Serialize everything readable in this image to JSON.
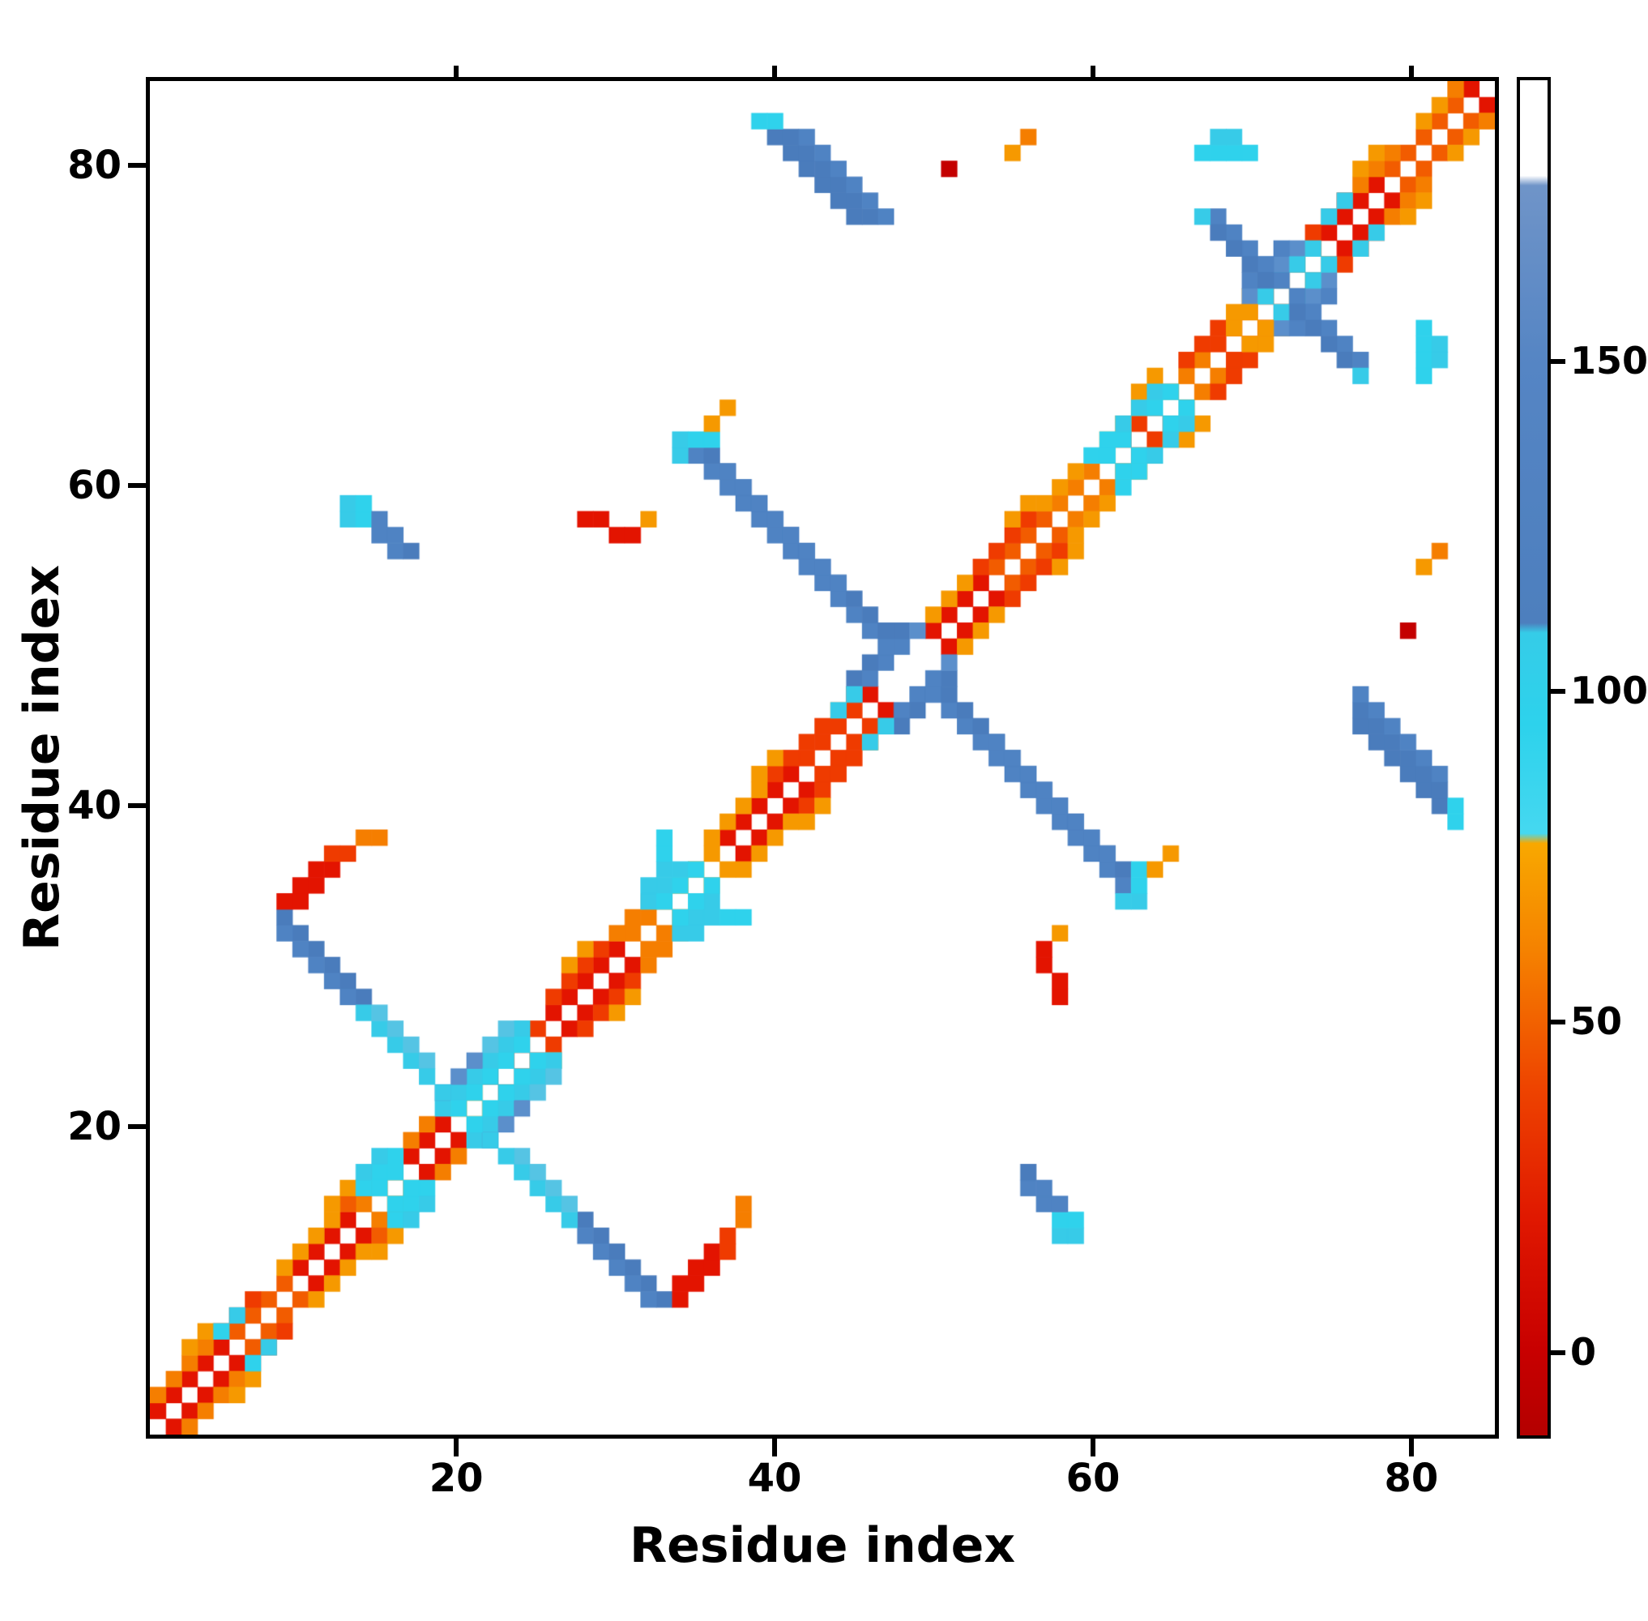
{
  "figure": {
    "xlabel": "Residue index",
    "ylabel": "Residue index",
    "x_ticks": [
      20,
      40,
      60,
      80
    ],
    "y_ticks": [
      20,
      40,
      60,
      80
    ],
    "n_residues": 85
  },
  "colorbar": {
    "ticks": [
      0,
      50,
      100,
      150
    ],
    "domain": [
      -13,
      193
    ],
    "stops": [
      [
        -13,
        "#b40000"
      ],
      [
        0,
        "#c80000"
      ],
      [
        20,
        "#e01800"
      ],
      [
        40,
        "#ee4400"
      ],
      [
        60,
        "#f58000"
      ],
      [
        77,
        "#f8a800"
      ],
      [
        78.5,
        "#45d8f0"
      ],
      [
        95,
        "#2dd2ec"
      ],
      [
        109,
        "#35cce8"
      ],
      [
        110.5,
        "#4d7fbe"
      ],
      [
        150,
        "#5585c4"
      ],
      [
        177,
        "#6f94c8"
      ],
      [
        178.5,
        "#ffffff"
      ],
      [
        193,
        "#ffffff"
      ]
    ]
  },
  "chart_data": {
    "type": "heatmap",
    "title": "",
    "xlabel": "Residue index",
    "ylabel": "Residue index",
    "x_range": [
      1,
      85
    ],
    "y_range": [
      1,
      85
    ],
    "symmetric": true,
    "grid": false,
    "colorbar_ticks": [
      0,
      50,
      100,
      150
    ],
    "colormap_thresholds": [
      {
        "max": 12,
        "color": "#c40000"
      },
      {
        "max": 22,
        "color": "#e31400"
      },
      {
        "max": 32,
        "color": "#ef3b00"
      },
      {
        "max": 45,
        "color": "#f25c00"
      },
      {
        "max": 58,
        "color": "#f57e00"
      },
      {
        "max": 70,
        "color": "#f69900"
      },
      {
        "max": 79,
        "color": "#f8b000"
      },
      {
        "max": 93,
        "color": "#2fd2ec"
      },
      {
        "max": 102,
        "color": "#37cbe8"
      },
      {
        "max": 110,
        "color": "#55c4e4"
      },
      {
        "max": 130,
        "color": "#5b8fcb"
      },
      {
        "max": 145,
        "color": "#4f83c3"
      },
      {
        "max": 160,
        "color": "#4a7cbc"
      },
      {
        "max": 178,
        "color": "#6b93c9"
      },
      {
        "max": 999,
        "color": "#ffffff"
      }
    ],
    "segment_format": [
      "i_start",
      "j_start",
      "di",
      "dj",
      "count",
      "value"
    ],
    "segments": [
      [
        1,
        2,
        1,
        1,
        5,
        20
      ],
      [
        6,
        7,
        1,
        1,
        4,
        45
      ],
      [
        10,
        11,
        1,
        1,
        4,
        18
      ],
      [
        14,
        15,
        1,
        1,
        3,
        50
      ],
      [
        17,
        18,
        1,
        1,
        3,
        22
      ],
      [
        20,
        21,
        1,
        1,
        2,
        60
      ],
      [
        22,
        23,
        1,
        1,
        4,
        25
      ],
      [
        26,
        27,
        1,
        1,
        5,
        18
      ],
      [
        31,
        32,
        1,
        1,
        3,
        48
      ],
      [
        34,
        35,
        1,
        1,
        3,
        60
      ],
      [
        37,
        38,
        1,
        1,
        5,
        15
      ],
      [
        42,
        43,
        1,
        1,
        4,
        28
      ],
      [
        46,
        47,
        1,
        1,
        1,
        20
      ],
      [
        50,
        51,
        1,
        1,
        4,
        18
      ],
      [
        54,
        55,
        1,
        1,
        4,
        40
      ],
      [
        58,
        59,
        1,
        1,
        4,
        55
      ],
      [
        62,
        63,
        1,
        1,
        3,
        30
      ],
      [
        65,
        66,
        1,
        1,
        3,
        50
      ],
      [
        68,
        69,
        1,
        1,
        4,
        25
      ],
      [
        72,
        73,
        1,
        1,
        3,
        45
      ],
      [
        75,
        76,
        1,
        1,
        4,
        18
      ],
      [
        79,
        80,
        1,
        1,
        5,
        35
      ],
      [
        84,
        85,
        1,
        1,
        1,
        15
      ],
      [
        1,
        3,
        1,
        1,
        4,
        55
      ],
      [
        5,
        7,
        1,
        1,
        3,
        30
      ],
      [
        9,
        11,
        1,
        1,
        4,
        62
      ],
      [
        13,
        15,
        1,
        1,
        3,
        35
      ],
      [
        17,
        19,
        1,
        1,
        2,
        58
      ],
      [
        22,
        24,
        1,
        1,
        3,
        65
      ],
      [
        26,
        28,
        1,
        1,
        4,
        30
      ],
      [
        30,
        32,
        1,
        1,
        3,
        58
      ],
      [
        36,
        38,
        1,
        1,
        4,
        62
      ],
      [
        40,
        42,
        1,
        1,
        4,
        30
      ],
      [
        44,
        46,
        1,
        1,
        2,
        58
      ],
      [
        50,
        52,
        1,
        1,
        3,
        62
      ],
      [
        53,
        55,
        1,
        1,
        4,
        32
      ],
      [
        57,
        59,
        1,
        1,
        3,
        60
      ],
      [
        61,
        63,
        1,
        1,
        3,
        65
      ],
      [
        66,
        68,
        1,
        1,
        3,
        30
      ],
      [
        69,
        71,
        1,
        1,
        3,
        60
      ],
      [
        74,
        76,
        1,
        1,
        3,
        32
      ],
      [
        77,
        79,
        1,
        1,
        3,
        58
      ],
      [
        81,
        83,
        1,
        1,
        3,
        62
      ],
      [
        3,
        6,
        1,
        1,
        2,
        68
      ],
      [
        12,
        15,
        1,
        1,
        2,
        70
      ],
      [
        27,
        30,
        1,
        1,
        2,
        66
      ],
      [
        39,
        42,
        1,
        1,
        2,
        70
      ],
      [
        55,
        58,
        1,
        1,
        2,
        68
      ],
      [
        63,
        66,
        1,
        1,
        2,
        70
      ],
      [
        77,
        80,
        1,
        1,
        2,
        66
      ],
      [
        5,
        7,
        1,
        1,
        1,
        90
      ],
      [
        6,
        8,
        1,
        1,
        1,
        96
      ],
      [
        14,
        16,
        1,
        1,
        3,
        92
      ],
      [
        14,
        17,
        1,
        1,
        2,
        98
      ],
      [
        15,
        16,
        1,
        1,
        2,
        88
      ],
      [
        19,
        21,
        1,
        1,
        6,
        94
      ],
      [
        20,
        22,
        1,
        1,
        5,
        100
      ],
      [
        19,
        22,
        1,
        1,
        3,
        118
      ],
      [
        20,
        21,
        1,
        1,
        5,
        88
      ],
      [
        22,
        25,
        1,
        1,
        2,
        105
      ],
      [
        32,
        34,
        1,
        1,
        3,
        95
      ],
      [
        33,
        34,
        1,
        1,
        3,
        88
      ],
      [
        32,
        35,
        1,
        1,
        2,
        102
      ],
      [
        33,
        37,
        0,
        1,
        2,
        92
      ],
      [
        45,
        47,
        1,
        1,
        4,
        135
      ],
      [
        45,
        48,
        1,
        1,
        4,
        148
      ],
      [
        44,
        46,
        1,
        1,
        2,
        100
      ],
      [
        49,
        51,
        1,
        1,
        1,
        120
      ],
      [
        60,
        62,
        1,
        1,
        2,
        92
      ],
      [
        61,
        62,
        1,
        1,
        2,
        86
      ],
      [
        62,
        64,
        1,
        1,
        3,
        95
      ],
      [
        64,
        65,
        1,
        1,
        2,
        88
      ],
      [
        70,
        72,
        1,
        1,
        4,
        120
      ],
      [
        70,
        73,
        1,
        1,
        3,
        140
      ],
      [
        71,
        72,
        1,
        1,
        4,
        95
      ],
      [
        69,
        70,
        1,
        1,
        2,
        62
      ],
      [
        75,
        77,
        1,
        1,
        2,
        96
      ],
      [
        35,
        62,
        1,
        -1,
        13,
        142
      ],
      [
        36,
        62,
        1,
        -1,
        12,
        152
      ],
      [
        37,
        61,
        1,
        -1,
        8,
        132
      ],
      [
        34,
        62,
        0,
        1,
        2,
        95
      ],
      [
        35,
        63,
        1,
        0,
        2,
        92
      ],
      [
        36,
        64,
        1,
        1,
        2,
        62
      ],
      [
        9,
        33,
        1,
        -1,
        6,
        148
      ],
      [
        9,
        32,
        1,
        -1,
        5,
        138
      ],
      [
        14,
        27,
        1,
        -1,
        4,
        98
      ],
      [
        15,
        27,
        1,
        -1,
        4,
        104
      ],
      [
        18,
        23,
        1,
        -1,
        2,
        96
      ],
      [
        68,
        77,
        1,
        -1,
        5,
        140
      ],
      [
        68,
        76,
        1,
        -1,
        4,
        150
      ],
      [
        67,
        77,
        0,
        1,
        1,
        95
      ],
      [
        40,
        82,
        1,
        -1,
        6,
        148
      ],
      [
        41,
        82,
        1,
        -1,
        6,
        156
      ],
      [
        42,
        82,
        1,
        -1,
        6,
        140
      ],
      [
        39,
        83,
        1,
        0,
        2,
        92
      ],
      [
        13,
        58,
        0,
        1,
        2,
        95
      ],
      [
        14,
        58,
        0,
        1,
        2,
        90
      ],
      [
        15,
        57,
        0,
        1,
        2,
        135
      ],
      [
        16,
        56,
        0,
        1,
        2,
        145
      ],
      [
        17,
        56,
        0,
        1,
        1,
        150
      ],
      [
        67,
        81,
        1,
        0,
        4,
        92
      ],
      [
        68,
        82,
        1,
        0,
        2,
        98
      ],
      [
        9,
        34,
        1,
        0,
        2,
        15
      ],
      [
        10,
        35,
        1,
        0,
        2,
        22
      ],
      [
        11,
        36,
        1,
        0,
        2,
        15
      ],
      [
        12,
        37,
        1,
        0,
        2,
        25
      ],
      [
        14,
        38,
        1,
        0,
        2,
        58
      ],
      [
        28,
        58,
        1,
        0,
        2,
        14
      ],
      [
        30,
        57,
        1,
        0,
        2,
        20
      ],
      [
        32,
        58,
        1,
        0,
        1,
        60
      ],
      [
        51,
        80,
        1,
        0,
        1,
        12
      ],
      [
        55,
        81,
        1,
        0,
        1,
        62
      ],
      [
        56,
        82,
        1,
        0,
        1,
        58
      ],
      [
        83,
        85,
        1,
        0,
        1,
        55
      ]
    ]
  }
}
